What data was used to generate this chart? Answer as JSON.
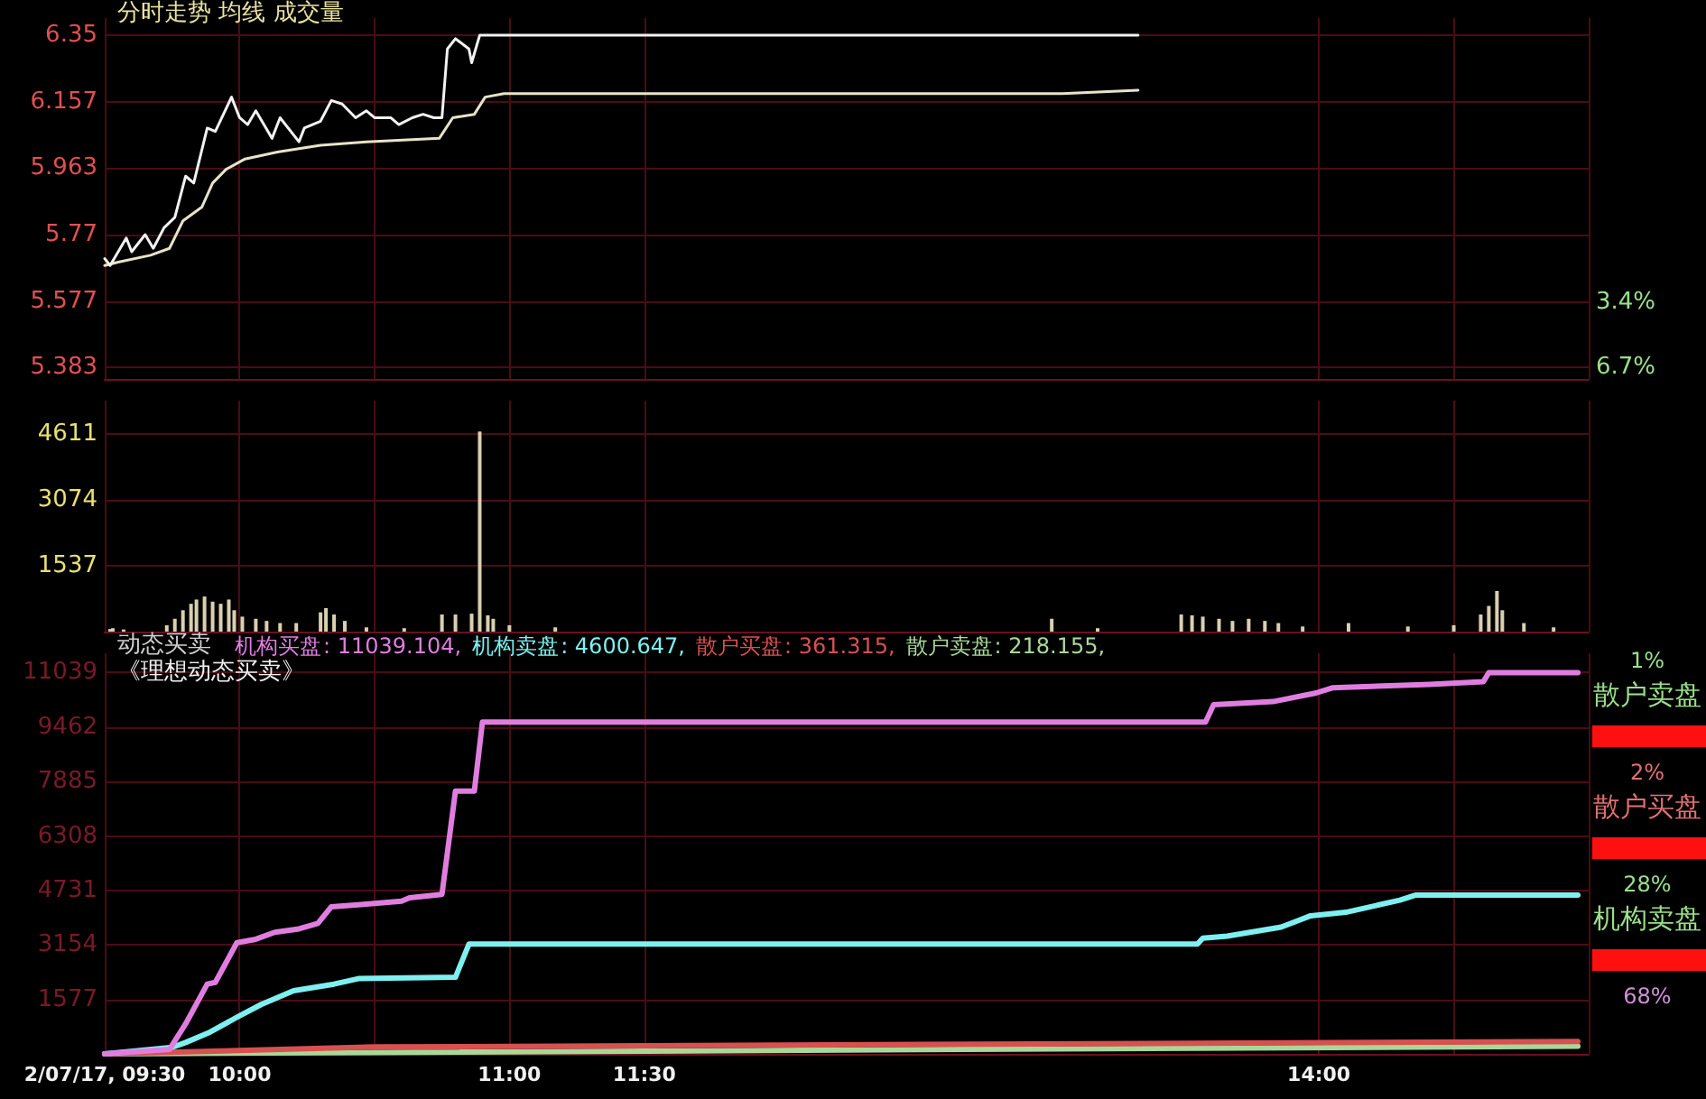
{
  "chart_data": [
    {
      "type": "line",
      "title": "分时走势 均线 成交量",
      "xlim": [
        9.5,
        15
      ],
      "xticks": [
        {
          "value": 9.5,
          "label": null
        },
        {
          "value": 10,
          "label": null
        },
        {
          "value": 10.5,
          "label": null
        },
        {
          "value": 11,
          "label": null
        },
        {
          "value": 11.5,
          "label": null
        },
        {
          "value": 14,
          "label": null
        },
        {
          "value": 14.5,
          "label": null
        },
        {
          "value": 15,
          "label": null
        }
      ],
      "ylim": [
        5.35,
        6.4
      ],
      "yticks": [
        5.383,
        5.577,
        5.77,
        5.963,
        6.157,
        6.35
      ],
      "y2lim": [
        -7.28,
        10.92
      ],
      "y2ticks": [
        {
          "value": -6.7,
          "label": "6.7%"
        },
        {
          "value": -3.4,
          "label": "3.4%"
        }
      ],
      "grid": true,
      "tick_labels": "y",
      "marker": "none",
      "series": [
        {
          "color": "#f2f2f2",
          "x": [
            9.5,
            9.52,
            9.58,
            9.6,
            9.65,
            9.68,
            9.72,
            9.76,
            9.8,
            9.83,
            9.88,
            9.91,
            9.97,
            10,
            10.03,
            10.06,
            10.12,
            10.15,
            10.22,
            10.24,
            10.3,
            10.34,
            10.38,
            10.43,
            10.47,
            10.5,
            10.56,
            10.59,
            10.64,
            10.68,
            10.72,
            10.75,
            10.77,
            10.8,
            10.85,
            10.86,
            10.89,
            13.33
          ],
          "values": [
            5.7,
            5.68,
            5.76,
            5.72,
            5.77,
            5.73,
            5.79,
            5.82,
            5.94,
            5.92,
            6.08,
            6.07,
            6.17,
            6.11,
            6.09,
            6.13,
            6.05,
            6.11,
            6.04,
            6.08,
            6.1,
            6.16,
            6.15,
            6.11,
            6.13,
            6.11,
            6.11,
            6.09,
            6.11,
            6.12,
            6.11,
            6.11,
            6.31,
            6.34,
            6.31,
            6.27,
            6.35,
            6.35
          ]
        },
        {
          "color": "#e8e2c8",
          "x": [
            9.5,
            9.55,
            9.67,
            9.74,
            9.79,
            9.86,
            9.9,
            9.95,
            10.02,
            10.14,
            10.3,
            10.47,
            10.74,
            10.79,
            10.87,
            10.91,
            10.98,
            13.05,
            13.33
          ],
          "values": [
            5.68,
            5.69,
            5.71,
            5.73,
            5.81,
            5.85,
            5.92,
            5.96,
            5.99,
            6.01,
            6.03,
            6.04,
            6.05,
            6.11,
            6.12,
            6.17,
            6.18,
            6.18,
            6.19
          ]
        }
      ]
    },
    {
      "type": "bar",
      "xlim": [
        9.5,
        15
      ],
      "xticks": [
        {
          "value": 9.5,
          "label": null
        },
        {
          "value": 10,
          "label": null
        },
        {
          "value": 10.5,
          "label": null
        },
        {
          "value": 11,
          "label": null
        },
        {
          "value": 11.5,
          "label": null
        },
        {
          "value": 14,
          "label": null
        },
        {
          "value": 14.5,
          "label": null
        },
        {
          "value": 15,
          "label": null
        }
      ],
      "ylim": [
        0,
        5400
      ],
      "yticks": [
        1537,
        3074,
        4611
      ],
      "grid": true,
      "tick_labels": "y",
      "color": "#d8d0b0",
      "x": [
        9.52,
        9.53,
        9.57,
        9.73,
        9.76,
        9.79,
        9.82,
        9.84,
        9.87,
        9.9,
        9.93,
        9.96,
        9.98,
        10.01,
        10.06,
        10.1,
        10.15,
        10.21,
        10.3,
        10.32,
        10.35,
        10.39,
        10.47,
        10.61,
        10.75,
        10.8,
        10.86,
        10.89,
        10.92,
        10.94,
        11,
        11.17,
        13.01,
        13.18,
        13.49,
        13.53,
        13.57,
        13.63,
        13.68,
        13.74,
        13.8,
        13.85,
        13.94,
        14.11,
        14.33,
        14.5,
        14.6,
        14.63,
        14.66,
        14.68,
        14.76,
        14.87
      ],
      "values": [
        60,
        80,
        50,
        150,
        300,
        500,
        650,
        750,
        820,
        700,
        650,
        750,
        500,
        350,
        300,
        250,
        200,
        200,
        450,
        550,
        400,
        250,
        100,
        80,
        400,
        400,
        420,
        4680,
        380,
        300,
        150,
        100,
        300,
        80,
        400,
        380,
        350,
        300,
        250,
        300,
        250,
        200,
        120,
        200,
        120,
        150,
        400,
        600,
        950,
        500,
        200,
        100
      ]
    },
    {
      "type": "line",
      "title": "动态买卖",
      "subtitle": "《理想动态买卖》",
      "annotations": [
        ": 11039.104,",
        ": 4600.647,",
        ": 361.315,",
        ": 218.155,"
      ],
      "legend": "top left",
      "xlim": [
        9.5,
        15
      ],
      "xticks": [
        {
          "value": 9.5,
          "label": "2/07/17, 09:30"
        },
        {
          "value": 10,
          "label": "10:00"
        },
        {
          "value": 10.5,
          "label": null
        },
        {
          "value": 11,
          "label": "11:00"
        },
        {
          "value": 11.5,
          "label": "11:30"
        },
        {
          "value": 14,
          "label": "14:00"
        },
        {
          "value": 14.5,
          "label": null
        },
        {
          "value": 15,
          "label": null
        }
      ],
      "ylim": [
        0,
        11600
      ],
      "yticks": [
        1577,
        3154,
        4731,
        6308,
        7885,
        9462,
        11039
      ],
      "grid": true,
      "marker": "none",
      "series": [
        {
          "name": "机构买盘",
          "color": "#e07ee0",
          "x": [
            9.5,
            9.74,
            9.8,
            9.88,
            9.91,
            9.99,
            10.06,
            10.13,
            10.22,
            10.29,
            10.34,
            10.44,
            10.6,
            10.63,
            10.75,
            10.8,
            10.87,
            10.9,
            13.58,
            13.61,
            13.83,
            13.99,
            14.05,
            14.41,
            14.61,
            14.63,
            14.96
          ],
          "values": [
            0,
            130,
            870,
            2020,
            2070,
            3220,
            3320,
            3520,
            3620,
            3780,
            4260,
            4320,
            4420,
            4520,
            4620,
            7610,
            7610,
            9610,
            9610,
            10110,
            10200,
            10450,
            10600,
            10700,
            10780,
            11039,
            11039
          ]
        },
        {
          "name": "机构卖盘",
          "color": "#7ef0f0",
          "x": [
            9.5,
            9.75,
            9.8,
            9.89,
            9.99,
            10.08,
            10.2,
            10.35,
            10.44,
            10.8,
            10.85,
            13.55,
            13.57,
            13.66,
            13.86,
            13.97,
            14.1,
            14.3,
            14.36,
            14.96
          ],
          "values": [
            0,
            190,
            330,
            630,
            1060,
            1430,
            1830,
            2020,
            2180,
            2220,
            3180,
            3180,
            3350,
            3410,
            3670,
            4000,
            4100,
            4450,
            4600,
            4600
          ]
        },
        {
          "name": "散户买盘",
          "color": "#d85050",
          "x": [
            9.5,
            10.5,
            14.96
          ],
          "values": [
            0,
            200,
            360
          ]
        },
        {
          "name": "散户卖盘",
          "color": "#a8d898",
          "x": [
            9.5,
            14.96
          ],
          "values": [
            0,
            220
          ]
        }
      ]
    },
    {
      "type": "other",
      "categories": [
        "散户卖盘",
        "散户买盘",
        "机构卖盘",
        null
      ],
      "values": [
        1,
        2,
        28,
        68
      ],
      "value_labels": [
        "1%",
        "2%",
        "28%",
        "68%"
      ]
    }
  ]
}
